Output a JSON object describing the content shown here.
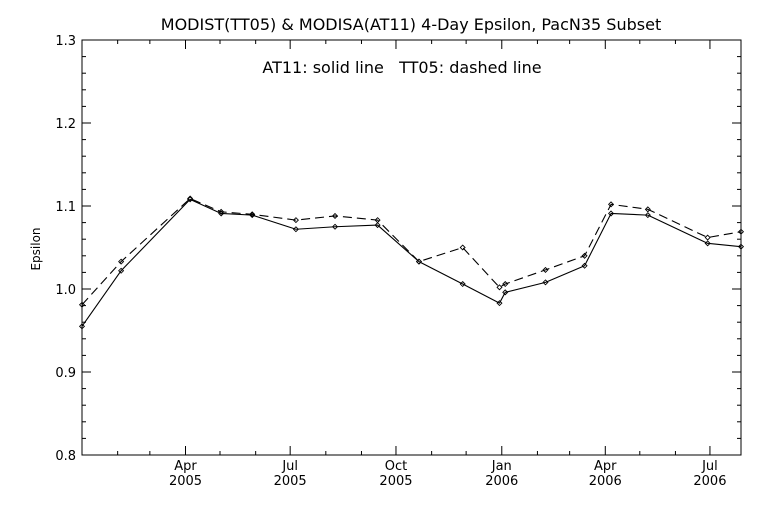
{
  "chart_data": {
    "type": "line",
    "title": "MODIST(TT05) & MODISA(AT11) 4-Day Epsilon, PacN35 Subset",
    "annotation": "AT11: solid line   TT05: dashed line",
    "xlabel": "",
    "ylabel": "Epsilon",
    "xlim": [
      "2005-01-01",
      "2006-07-28"
    ],
    "ylim": [
      0.8,
      1.3
    ],
    "yticks": [
      "0.8",
      "0.9",
      "1.0",
      "1.1",
      "1.2",
      "1.3"
    ],
    "xticks": [
      {
        "month": "Apr",
        "year": "2005",
        "date": "2005-04-01"
      },
      {
        "month": "Jul",
        "year": "2005",
        "date": "2005-07-01"
      },
      {
        "month": "Oct",
        "year": "2005",
        "date": "2005-10-01"
      },
      {
        "month": "Jan",
        "year": "2006",
        "date": "2006-01-01"
      },
      {
        "month": "Apr",
        "year": "2006",
        "date": "2006-04-01"
      },
      {
        "month": "Jul",
        "year": "2006",
        "date": "2006-07-01"
      }
    ],
    "series": [
      {
        "name": "AT11",
        "style": "solid",
        "points": [
          {
            "x": "2005-01-01",
            "y": 0.955
          },
          {
            "x": "2005-02-04",
            "y": 1.022
          },
          {
            "x": "2005-04-05",
            "y": 1.108
          },
          {
            "x": "2005-05-02",
            "y": 1.091
          },
          {
            "x": "2005-05-29",
            "y": 1.089
          },
          {
            "x": "2005-07-06",
            "y": 1.072
          },
          {
            "x": "2005-08-09",
            "y": 1.075
          },
          {
            "x": "2005-09-15",
            "y": 1.077
          },
          {
            "x": "2005-10-21",
            "y": 1.033
          },
          {
            "x": "2005-11-28",
            "y": 1.006
          },
          {
            "x": "2005-12-30",
            "y": 0.983
          },
          {
            "x": "2006-01-04",
            "y": 0.996
          },
          {
            "x": "2006-02-08",
            "y": 1.008
          },
          {
            "x": "2006-03-14",
            "y": 1.028
          },
          {
            "x": "2006-04-06",
            "y": 1.091
          },
          {
            "x": "2006-05-08",
            "y": 1.089
          },
          {
            "x": "2006-06-29",
            "y": 1.055
          },
          {
            "x": "2006-07-28",
            "y": 1.051
          }
        ]
      },
      {
        "name": "TT05",
        "style": "dashed",
        "points": [
          {
            "x": "2005-01-01",
            "y": 0.981
          },
          {
            "x": "2005-02-04",
            "y": 1.033
          },
          {
            "x": "2005-04-05",
            "y": 1.109
          },
          {
            "x": "2005-05-02",
            "y": 1.093
          },
          {
            "x": "2005-05-29",
            "y": 1.09
          },
          {
            "x": "2005-07-06",
            "y": 1.083
          },
          {
            "x": "2005-08-09",
            "y": 1.088
          },
          {
            "x": "2005-09-15",
            "y": 1.083
          },
          {
            "x": "2005-10-21",
            "y": 1.033
          },
          {
            "x": "2005-11-28",
            "y": 1.05
          },
          {
            "x": "2005-12-30",
            "y": 1.002
          },
          {
            "x": "2006-01-04",
            "y": 1.006
          },
          {
            "x": "2006-02-08",
            "y": 1.023
          },
          {
            "x": "2006-03-14",
            "y": 1.04
          },
          {
            "x": "2006-04-06",
            "y": 1.102
          },
          {
            "x": "2006-05-08",
            "y": 1.096
          },
          {
            "x": "2006-06-29",
            "y": 1.062
          },
          {
            "x": "2006-07-28",
            "y": 1.069
          }
        ]
      }
    ]
  }
}
